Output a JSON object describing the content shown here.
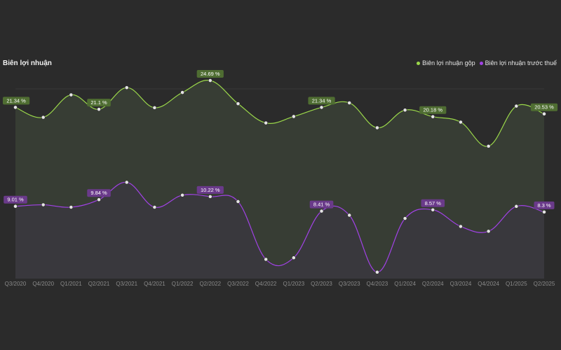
{
  "colors": {
    "background": "#2b2b2b",
    "series1": "#9bd84a",
    "series1_label_bg": "#4f6d32",
    "series2": "#a142e6",
    "series2_label_bg": "#6a3a8a",
    "axis_text": "#8a8a8a"
  },
  "chart_data": {
    "type": "line",
    "title": "Biên lợi nhuận",
    "legend_position": "top-right",
    "grid": false,
    "ylim": [
      0,
      26
    ],
    "categories": [
      "Q3/2020",
      "Q4/2020",
      "Q1/2021",
      "Q2/2021",
      "Q3/2021",
      "Q4/2021",
      "Q1/2022",
      "Q2/2022",
      "Q3/2022",
      "Q4/2022",
      "Q1/2023",
      "Q2/2023",
      "Q3/2023",
      "Q4/2023",
      "Q1/2024",
      "Q2/2024",
      "Q3/2024",
      "Q4/2024",
      "Q1/2025",
      "Q2/2025"
    ],
    "series": [
      {
        "name": "Biên lợi nhuận gộp",
        "values": [
          21.34,
          20.1,
          22.9,
          21.1,
          23.8,
          21.3,
          23.2,
          24.69,
          21.8,
          19.4,
          20.2,
          21.34,
          21.9,
          18.8,
          21.0,
          20.18,
          19.5,
          16.5,
          21.5,
          20.53
        ],
        "labels": {
          "0": "21.34 %",
          "3": "21.1 %",
          "7": "24.69 %",
          "11": "21.34 %",
          "15": "20.18 %",
          "19": "20.53 %"
        }
      },
      {
        "name": "Biên lợi nhuận trước thuế",
        "values": [
          9.01,
          9.2,
          8.9,
          9.84,
          12.0,
          8.9,
          10.4,
          10.22,
          9.6,
          2.4,
          2.6,
          8.41,
          7.9,
          0.8,
          7.5,
          8.57,
          6.5,
          5.9,
          9.0,
          8.3
        ],
        "labels": {
          "0": "9.01 %",
          "3": "9.84 %",
          "7": "10.22 %",
          "11": "8.41 %",
          "15": "8.57 %",
          "19": "8.3 %"
        }
      }
    ]
  }
}
